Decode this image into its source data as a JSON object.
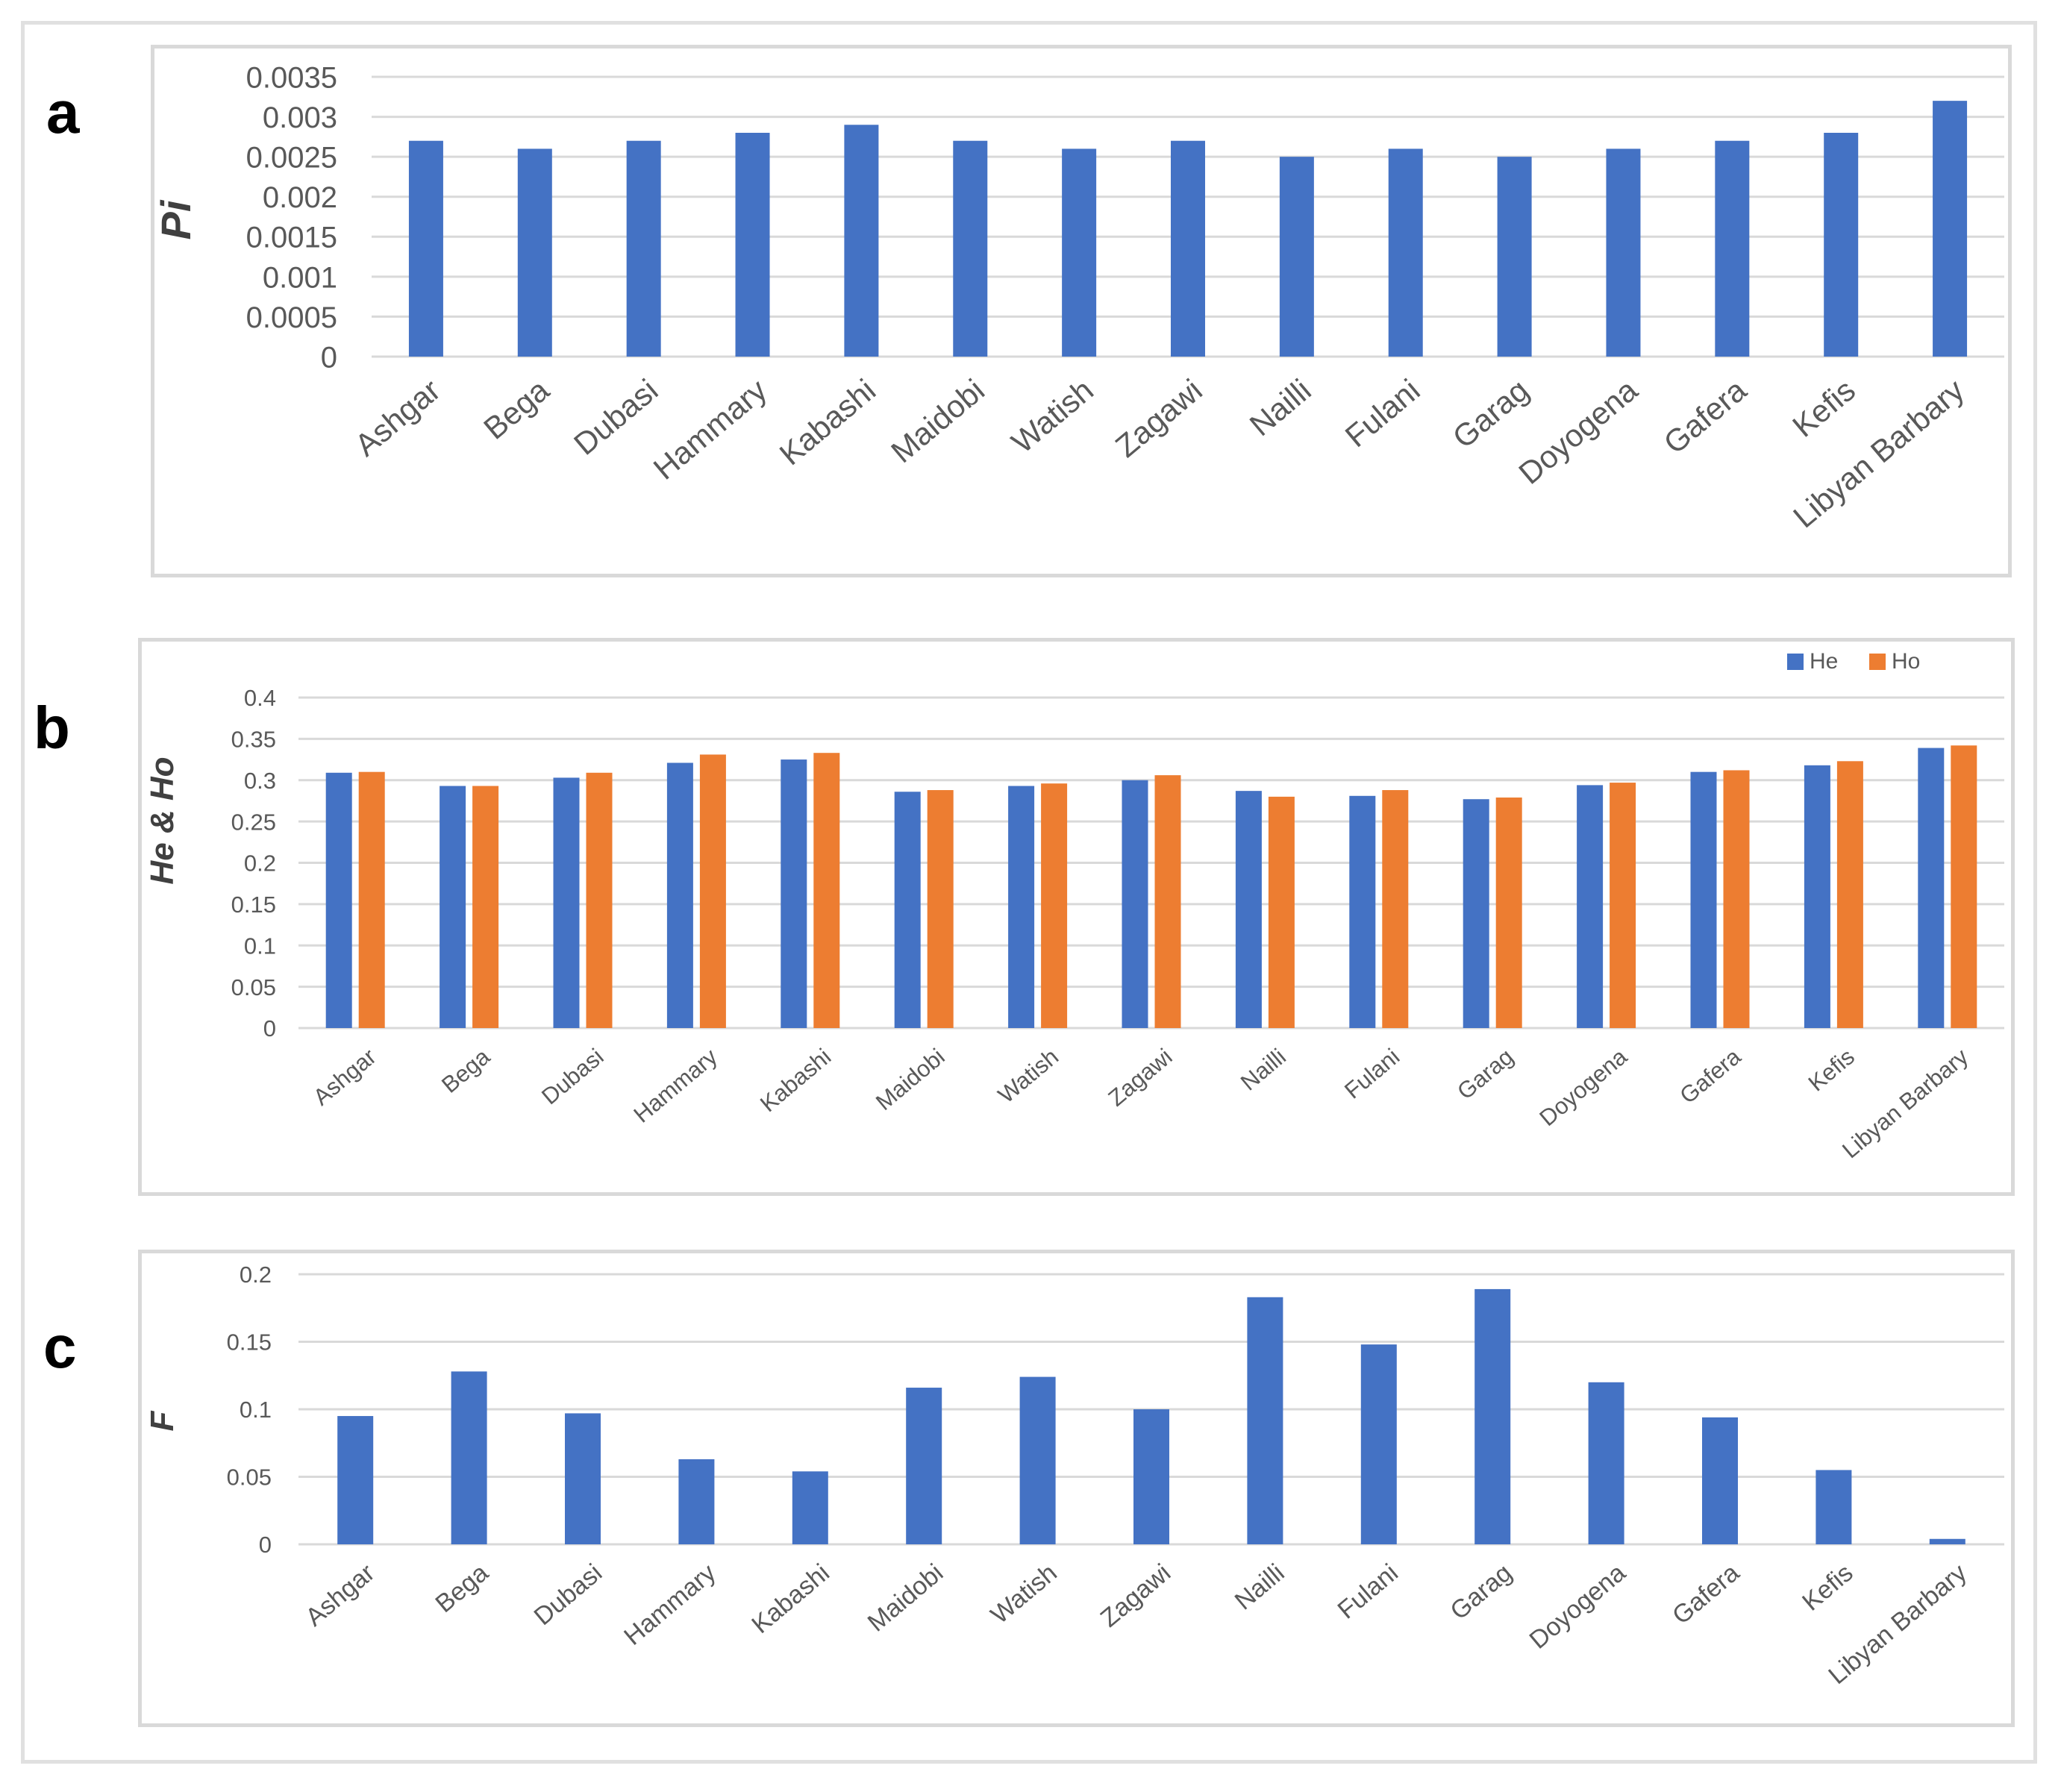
{
  "panel_labels": [
    "a",
    "b",
    "c"
  ],
  "colors": {
    "blue": "#4472C4",
    "orange": "#ED7D31",
    "grid": "#d9d9d9",
    "text": "#595959"
  },
  "chart_data": [
    {
      "type": "bar",
      "title": "",
      "panel": "a",
      "xlabel": "",
      "ylabel": "Pi",
      "ylim": [
        0,
        0.0035
      ],
      "yticks": [
        "0",
        "0.0005",
        "0.001",
        "0.0015",
        "0.002",
        "0.0025",
        "0.003",
        "0.0035"
      ],
      "categories": [
        "Ashgar",
        "Bega",
        "Dubasi",
        "Hammary",
        "Kabashi",
        "Maidobi",
        "Watish",
        "Zagawi",
        "Nailli",
        "Fulani",
        "Garag",
        "Doyogena",
        "Gafera",
        "Kefis",
        "Libyan Barbary"
      ],
      "series": [
        {
          "name": "Pi",
          "values": [
            0.0027,
            0.0026,
            0.0027,
            0.0028,
            0.0029,
            0.0027,
            0.0026,
            0.0027,
            0.0025,
            0.0026,
            0.0025,
            0.0026,
            0.0027,
            0.0028,
            0.0032
          ]
        }
      ]
    },
    {
      "type": "bar",
      "title": "",
      "panel": "b",
      "xlabel": "",
      "ylabel": "He & Ho",
      "ylim": [
        0,
        0.4
      ],
      "yticks": [
        "0",
        "0.05",
        "0.1",
        "0.15",
        "0.2",
        "0.25",
        "0.3",
        "0.35",
        "0.4"
      ],
      "legend": "top-right",
      "categories": [
        "Ashgar",
        "Bega",
        "Dubasi",
        "Hammary",
        "Kabashi",
        "Maidobi",
        "Watish",
        "Zagawi",
        "Nailli",
        "Fulani",
        "Garag",
        "Doyogena",
        "Gafera",
        "Kefis",
        "Libyan Barbary"
      ],
      "series": [
        {
          "name": "He",
          "values": [
            0.309,
            0.293,
            0.303,
            0.321,
            0.325,
            0.286,
            0.293,
            0.3,
            0.287,
            0.281,
            0.277,
            0.294,
            0.31,
            0.318,
            0.339
          ]
        },
        {
          "name": "Ho",
          "values": [
            0.31,
            0.293,
            0.309,
            0.331,
            0.333,
            0.288,
            0.296,
            0.306,
            0.28,
            0.288,
            0.279,
            0.297,
            0.312,
            0.323,
            0.342
          ]
        }
      ]
    },
    {
      "type": "bar",
      "title": "",
      "panel": "c",
      "xlabel": "",
      "ylabel": "F",
      "ylim": [
        0,
        0.2
      ],
      "yticks": [
        "0",
        "0.05",
        "0.1",
        "0.15",
        "0.2"
      ],
      "categories": [
        "Ashgar",
        "Bega",
        "Dubasi",
        "Hammary",
        "Kabashi",
        "Maidobi",
        "Watish",
        "Zagawi",
        "Nailli",
        "Fulani",
        "Garag",
        "Doyogena",
        "Gafera",
        "Kefis",
        "Libyan Barbary"
      ],
      "series": [
        {
          "name": "F",
          "values": [
            0.095,
            0.128,
            0.097,
            0.063,
            0.054,
            0.116,
            0.124,
            0.1,
            0.183,
            0.148,
            0.189,
            0.12,
            0.094,
            0.055,
            0.004
          ]
        }
      ]
    }
  ]
}
